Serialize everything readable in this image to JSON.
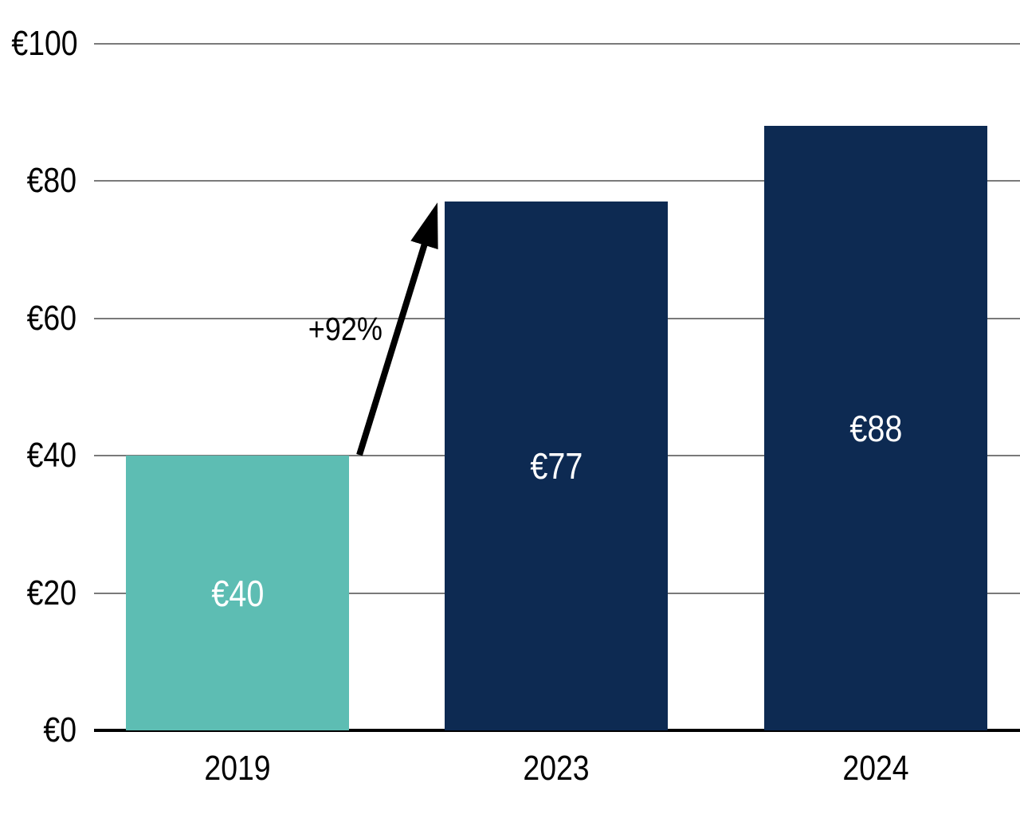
{
  "chart_data": {
    "type": "bar",
    "title": "",
    "categories": [
      "2019",
      "2023",
      "2024"
    ],
    "values": [
      40,
      77,
      88
    ],
    "bar_value_labels": [
      "€40",
      "€77",
      "€88"
    ],
    "unit_prefix": "€",
    "xlabel": "",
    "ylabel": "",
    "ylim": [
      0,
      100
    ],
    "ytick_interval": 20,
    "ytick_labels": [
      "€0",
      "€20",
      "€40",
      "€60",
      "€80",
      "€100"
    ],
    "grid": "horizontal",
    "legend": "none",
    "annotation": {
      "text": "+92%",
      "from_category": "2019",
      "to_category": "2023"
    },
    "colors": {
      "bar_colors": [
        "#5dbdb3",
        "#0d2a52",
        "#0d2a52"
      ],
      "gridline": "#7a7a7a",
      "axis_line": "#000000",
      "tick_text": "#000000",
      "bar_label_text": "#ffffff",
      "annotation_text": "#000000",
      "arrow": "#000000",
      "background": "#ffffff"
    }
  }
}
